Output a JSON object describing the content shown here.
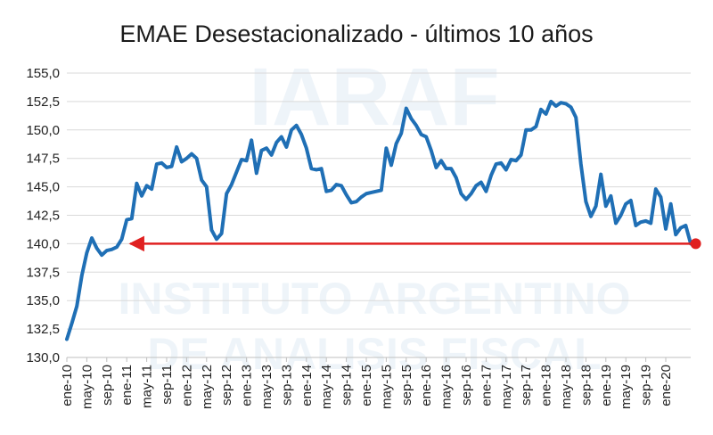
{
  "chart_data": {
    "type": "line",
    "title": "EMAE Desestacionalizado - últimos 10 años",
    "xlabel": "",
    "ylabel": "",
    "ylim": [
      130.0,
      155.0
    ],
    "y_ticks": [
      "130,0",
      "132,5",
      "135,0",
      "137,5",
      "140,0",
      "142,5",
      "145,0",
      "147,5",
      "150,0",
      "152,5",
      "155,0"
    ],
    "x_ticks": [
      "ene-10",
      "may-10",
      "sep-10",
      "ene-11",
      "may-11",
      "sep-11",
      "ene-12",
      "may-12",
      "sep-12",
      "ene-13",
      "may-13",
      "sep-13",
      "ene-14",
      "may-14",
      "sep-14",
      "ene-15",
      "may-15",
      "sep-15",
      "ene-16",
      "may-16",
      "sep-16",
      "ene-17",
      "may-17",
      "sep-17",
      "ene-18",
      "may-18",
      "sep-18",
      "ene-19",
      "may-19",
      "sep-19",
      "ene-20"
    ],
    "series": [
      {
        "name": "EMAE Desestacionalizado",
        "color": "#1f6fb5",
        "values": [
          131.6,
          133.0,
          134.5,
          137.2,
          139.2,
          140.5,
          139.6,
          139.0,
          139.4,
          139.5,
          139.7,
          140.4,
          142.1,
          142.2,
          145.3,
          144.2,
          145.1,
          144.8,
          147.0,
          147.1,
          146.7,
          146.8,
          148.5,
          147.2,
          147.5,
          147.9,
          147.5,
          145.6,
          145.0,
          141.2,
          140.4,
          140.9,
          144.4,
          145.2,
          146.3,
          147.4,
          147.3,
          149.1,
          146.2,
          148.2,
          148.4,
          147.8,
          148.9,
          149.4,
          148.5,
          150.0,
          150.4,
          149.6,
          148.4,
          146.6,
          146.5,
          146.6,
          144.6,
          144.7,
          145.2,
          145.1,
          144.3,
          143.6,
          143.7,
          144.1,
          144.4,
          144.5,
          144.6,
          144.7,
          148.4,
          146.9,
          148.8,
          149.7,
          151.9,
          151.0,
          150.4,
          149.6,
          149.4,
          148.2,
          146.7,
          147.3,
          146.6,
          146.6,
          145.8,
          144.4,
          143.9,
          144.4,
          145.1,
          145.4,
          144.6,
          146.0,
          147.0,
          147.1,
          146.5,
          147.4,
          147.3,
          147.8,
          150.0,
          150.0,
          150.3,
          151.8,
          151.4,
          152.5,
          152.1,
          152.4,
          152.3,
          152.0,
          151.1,
          147.0,
          143.7,
          142.4,
          143.3,
          146.1,
          143.3,
          144.2,
          141.8,
          142.5,
          143.5,
          143.8,
          141.6,
          141.9,
          142.0,
          141.8,
          144.8,
          144.1,
          141.3,
          143.5,
          140.8,
          141.4,
          141.6,
          140.0
        ]
      }
    ],
    "annotations": [
      {
        "type": "reference-arrow",
        "color": "#e02020",
        "y": 140.0,
        "from_index": 126,
        "to_index": 12
      }
    ],
    "watermark": {
      "lines": [
        "IARAF",
        "INSTITUTO ARGENTINO",
        "DE ANALISIS FISCAL"
      ]
    }
  }
}
